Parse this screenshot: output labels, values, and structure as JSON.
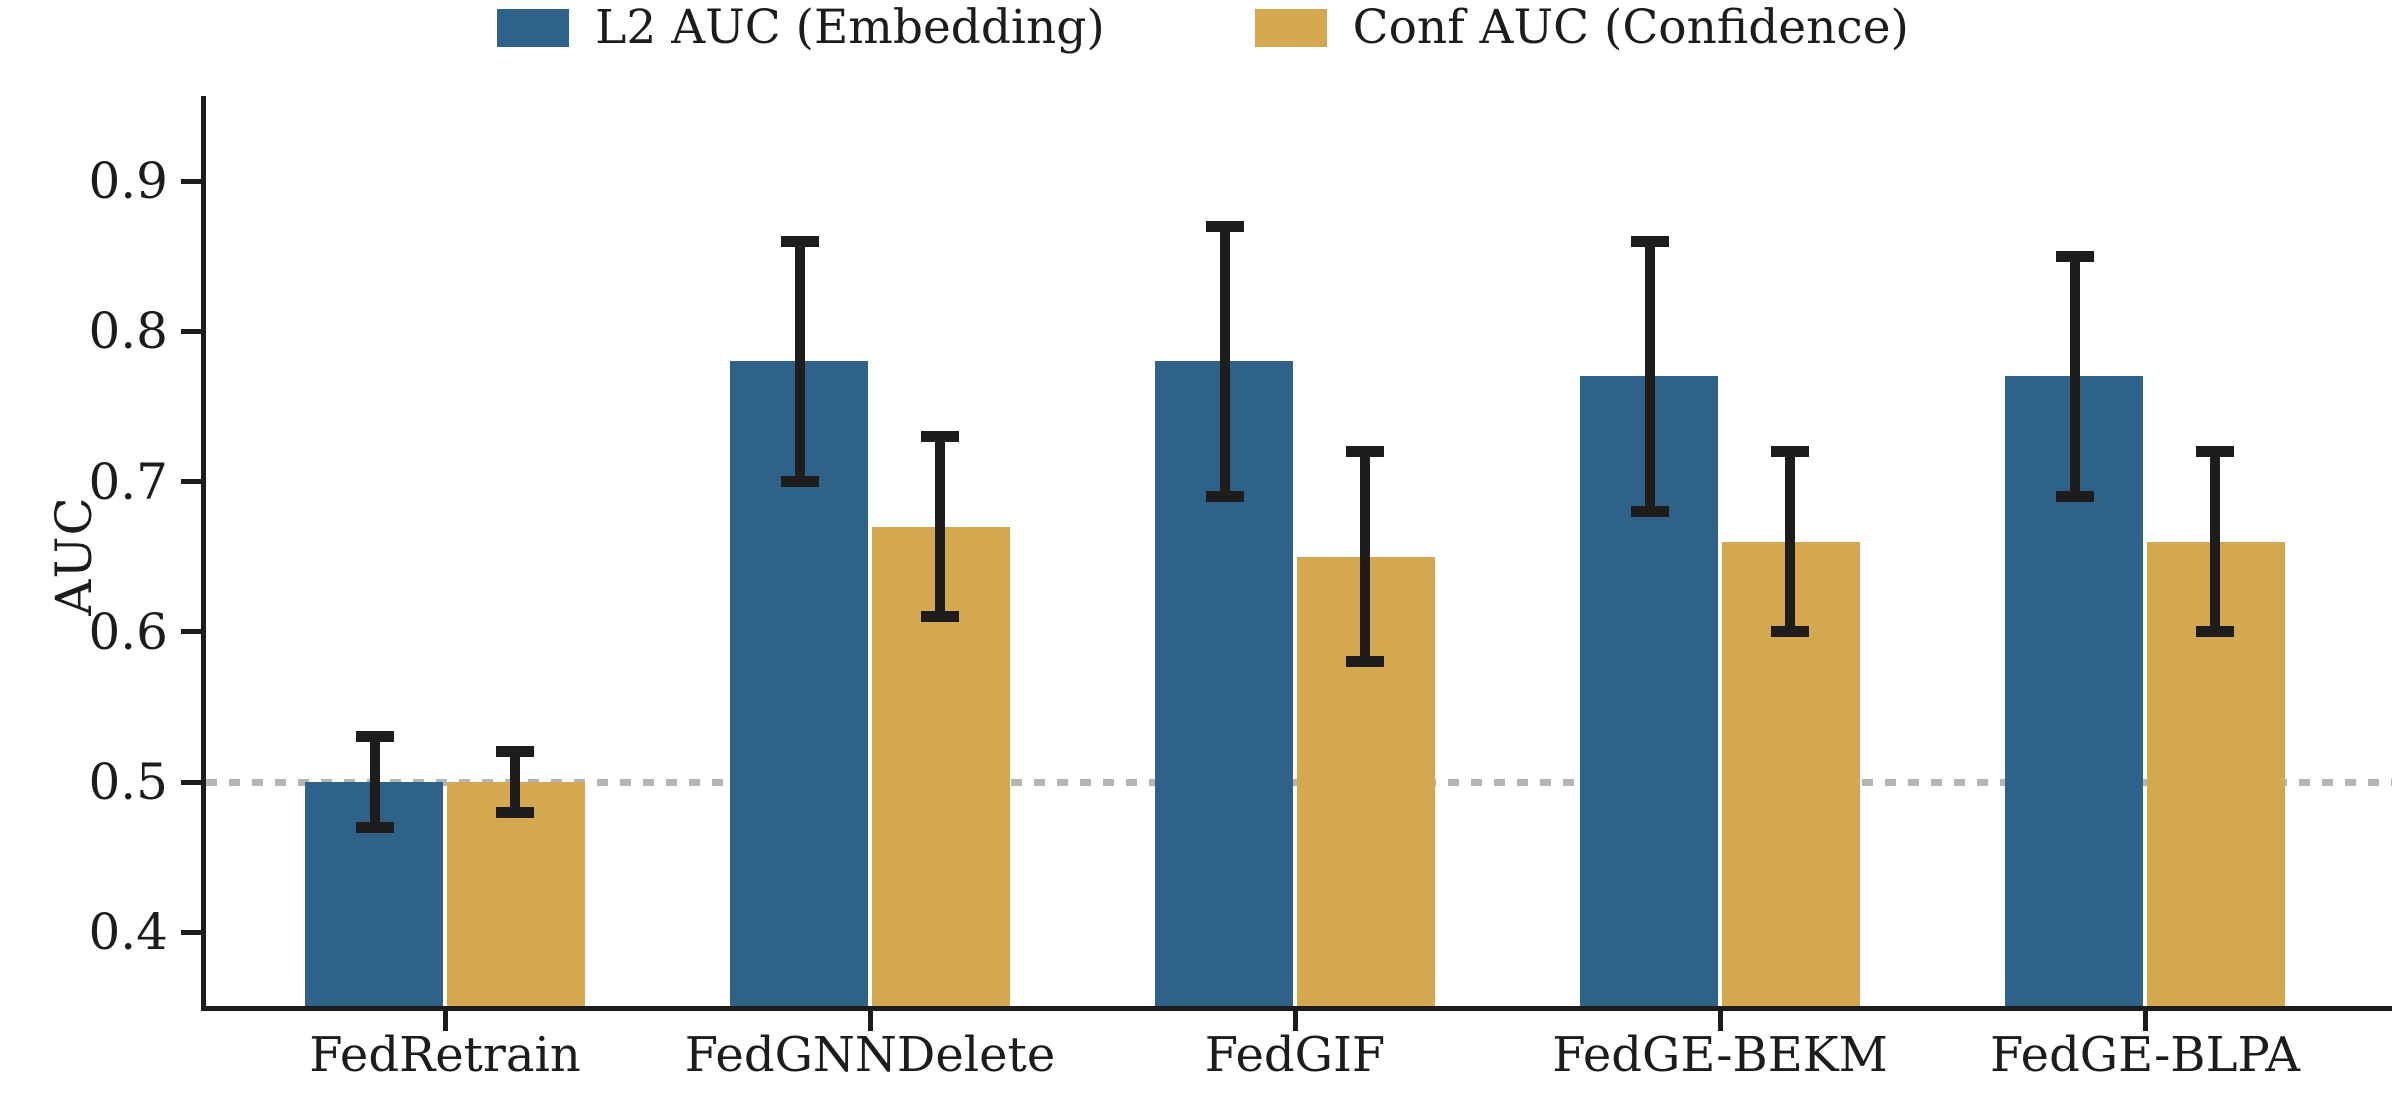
{
  "figure_title": "",
  "legend": {
    "items": [
      {
        "label": "L2 AUC (Embedding)",
        "color": "#2e6288"
      },
      {
        "label": "Conf AUC (Confidence)",
        "color": "#d4a84e"
      }
    ]
  },
  "chart_data": {
    "type": "bar",
    "title": "",
    "xlabel": "",
    "ylabel": "AUC",
    "categories": [
      "FedRetrain",
      "FedGNNDelete",
      "FedGIF",
      "FedGE-BEKM",
      "FedGE-BLPA"
    ],
    "series": [
      {
        "name": "L2 AUC (Embedding)",
        "color": "#2e6288",
        "values": [
          0.5,
          0.78,
          0.78,
          0.77,
          0.77
        ],
        "err_low": [
          0.47,
          0.7,
          0.69,
          0.68,
          0.69
        ],
        "err_high": [
          0.53,
          0.86,
          0.87,
          0.86,
          0.85
        ]
      },
      {
        "name": "Conf AUC (Confidence)",
        "color": "#d4a84e",
        "values": [
          0.5,
          0.67,
          0.65,
          0.66,
          0.66
        ],
        "err_low": [
          0.48,
          0.61,
          0.58,
          0.6,
          0.6
        ],
        "err_high": [
          0.52,
          0.73,
          0.72,
          0.72,
          0.72
        ]
      }
    ],
    "ytick_labels": [
      "0.9",
      "0.8",
      "0.7",
      "0.6",
      "0.5",
      "0.4"
    ],
    "ytick_values": [
      0.9,
      0.8,
      0.7,
      0.6,
      0.5,
      0.4
    ],
    "ylim": [
      0.349,
      0.956
    ],
    "reference_line": {
      "value": 0.5,
      "style": "dotted",
      "color": "#b5b5b5"
    },
    "grid": false,
    "legend_position": "top-center",
    "error_bar_color": "#1f1c1c"
  }
}
